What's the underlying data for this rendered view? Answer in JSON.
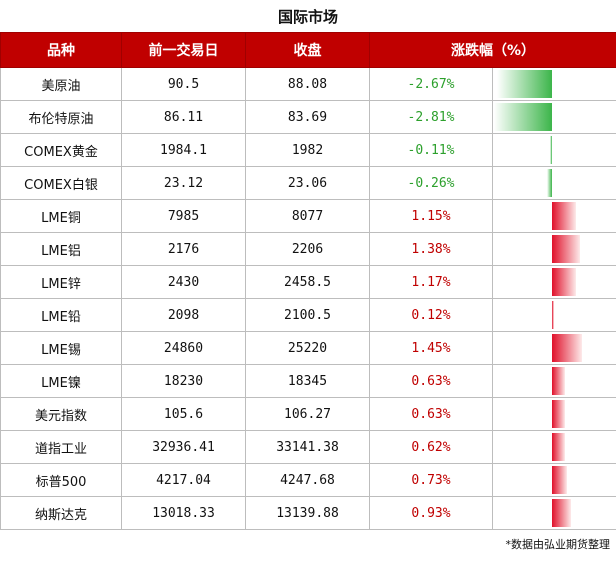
{
  "title": "国际市场",
  "headers": {
    "name": "品种",
    "prev": "前一交易日",
    "close": "收盘",
    "change": "涨跌幅（%）"
  },
  "rows": [
    {
      "name": "美原油",
      "prev": "90.5",
      "close": "88.08",
      "pct": "-2.67%",
      "value": -2.67
    },
    {
      "name": "布伦特原油",
      "prev": "86.11",
      "close": "83.69",
      "pct": "-2.81%",
      "value": -2.81
    },
    {
      "name": "COMEX黄金",
      "prev": "1984.1",
      "close": "1982",
      "pct": "-0.11%",
      "value": -0.11
    },
    {
      "name": "COMEX白银",
      "prev": "23.12",
      "close": "23.06",
      "pct": "-0.26%",
      "value": -0.26
    },
    {
      "name": "LME铜",
      "prev": "7985",
      "close": "8077",
      "pct": "1.15%",
      "value": 1.15
    },
    {
      "name": "LME铝",
      "prev": "2176",
      "close": "2206",
      "pct": "1.38%",
      "value": 1.38
    },
    {
      "name": "LME锌",
      "prev": "2430",
      "close": "2458.5",
      "pct": "1.17%",
      "value": 1.17
    },
    {
      "name": "LME铅",
      "prev": "2098",
      "close": "2100.5",
      "pct": "0.12%",
      "value": 0.12
    },
    {
      "name": "LME锡",
      "prev": "24860",
      "close": "25220",
      "pct": "1.45%",
      "value": 1.45
    },
    {
      "name": "LME镍",
      "prev": "18230",
      "close": "18345",
      "pct": "0.63%",
      "value": 0.63
    },
    {
      "name": "美元指数",
      "prev": "105.6",
      "close": "106.27",
      "pct": "0.63%",
      "value": 0.63
    },
    {
      "name": "道指工业",
      "prev": "32936.41",
      "close": "33141.38",
      "pct": "0.62%",
      "value": 0.62
    },
    {
      "name": "标普500",
      "prev": "4217.04",
      "close": "4247.68",
      "pct": "0.73%",
      "value": 0.73
    },
    {
      "name": "纳斯达克",
      "prev": "13018.33",
      "close": "13139.88",
      "pct": "0.93%",
      "value": 0.93
    }
  ],
  "footnote": "*数据由弘业期货整理",
  "colors": {
    "header_bg": "#c00000",
    "negative": "#2ca02c",
    "positive": "#c00000"
  }
}
